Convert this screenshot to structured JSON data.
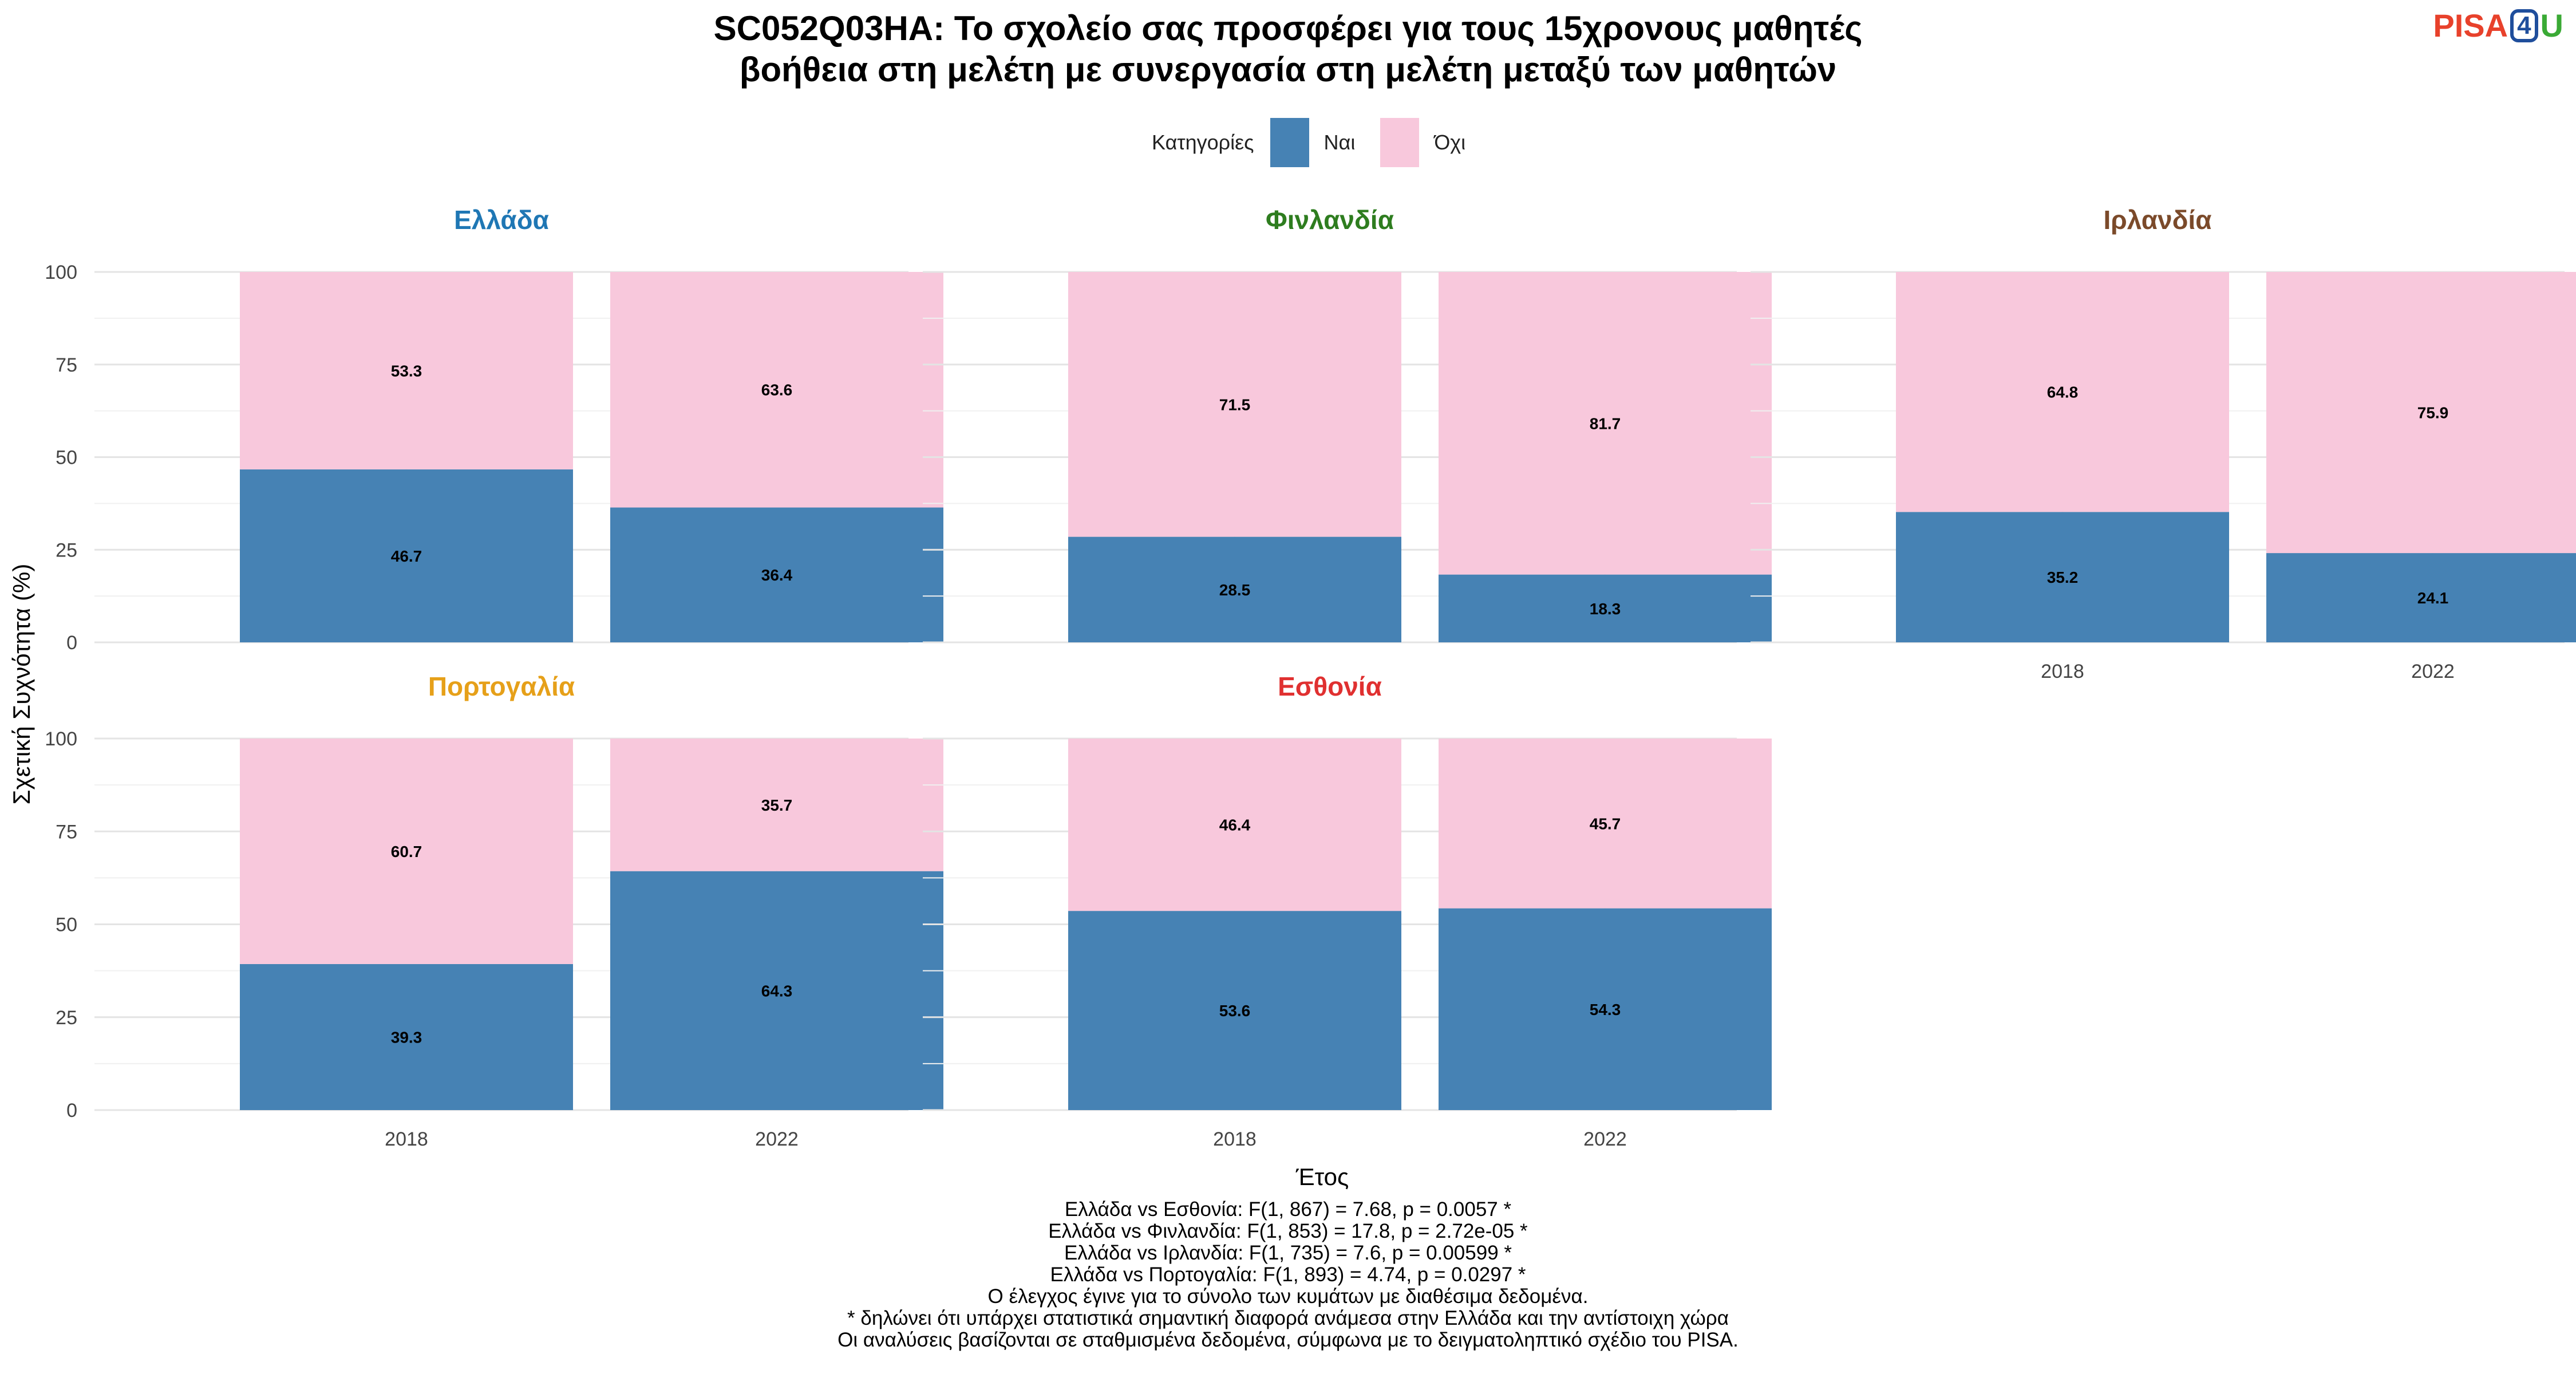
{
  "title_line1": "SC052Q03HA: Το σχολείο σας προσφέρει για τους 15χρονους μαθητές",
  "title_line2": "βοήθεια στη μελέτη με συνεργασία στη μελέτη μεταξύ των μαθητών",
  "logo": {
    "part1": "PISA",
    "part2": "4",
    "part3": "U"
  },
  "legend": {
    "title": "Κατηγορίες",
    "items": [
      {
        "label": "Ναι",
        "color": "#4682B4"
      },
      {
        "label": "Όχι",
        "color": "#F8C8DC"
      }
    ]
  },
  "chart_data": {
    "type": "bar",
    "stacked": true,
    "xlabel": "Έτος",
    "ylabel": "Σχετική Συχνότητα (%)",
    "ylim": [
      0,
      100
    ],
    "yticks": [
      0,
      25,
      50,
      75,
      100
    ],
    "categories": [
      "2018",
      "2022"
    ],
    "series_names": [
      "Ναι",
      "Όχι"
    ],
    "series_colors": [
      "#4682B4",
      "#F8C8DC"
    ],
    "panels": [
      {
        "country": "Ελλάδα",
        "color": "#1f77b4",
        "nai": [
          46.7,
          36.4
        ],
        "oxi": [
          53.3,
          63.6
        ]
      },
      {
        "country": "Φινλανδία",
        "color": "#2e7d1f",
        "nai": [
          28.5,
          18.3
        ],
        "oxi": [
          71.5,
          81.7
        ]
      },
      {
        "country": "Ιρλανδία",
        "color": "#7b4a2a",
        "nai": [
          35.2,
          24.1
        ],
        "oxi": [
          64.8,
          75.9
        ]
      },
      {
        "country": "Πορτογαλία",
        "color": "#e6a019",
        "nai": [
          39.3,
          64.3
        ],
        "oxi": [
          60.7,
          35.7
        ]
      },
      {
        "country": "Εσθονία",
        "color": "#e03030",
        "nai": [
          53.6,
          54.3
        ],
        "oxi": [
          46.4,
          45.7
        ]
      }
    ]
  },
  "footnotes": [
    "Ελλάδα vs Εσθονία: F(1, 867) = 7.68, p = 0.0057 *",
    "Ελλάδα vs Φινλανδία: F(1, 853) = 17.8, p = 2.72e-05 *",
    "Ελλάδα vs Ιρλανδία: F(1, 735) = 7.6, p = 0.00599 *",
    "Ελλάδα vs Πορτογαλία: F(1, 893) = 4.74, p = 0.0297 *",
    "Ο έλεγχος έγινε για το σύνολο των κυμάτων με διαθέσιμα δεδομένα.",
    "* δηλώνει ότι υπάρχει στατιστικά σημαντική διαφορά ανάμεσα στην Ελλάδα και την αντίστοιχη χώρα",
    "Οι αναλύσεις βασίζονται σε σταθμισμένα δεδομένα, σύμφωνα με το δειγματοληπτικό σχέδιο του PISA."
  ]
}
